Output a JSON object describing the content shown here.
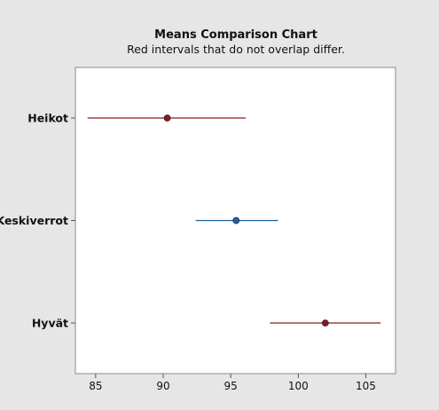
{
  "chart_data": {
    "type": "interval",
    "title": "Means Comparison Chart",
    "subtitle": "Red intervals that do not overlap differ.",
    "xlabel": "",
    "ylabel": "",
    "xlim": [
      83.5,
      107.2
    ],
    "xticks": [
      85,
      90,
      95,
      100,
      105
    ],
    "categories": [
      "Heikot",
      "Keskiverrot",
      "Hyvät"
    ],
    "series": [
      {
        "mean": 90.3,
        "lower": 84.4,
        "upper": 96.1,
        "color": "#8b1a1a"
      },
      {
        "mean": 95.4,
        "lower": 92.4,
        "upper": 98.5,
        "color": "#1f5fa6"
      },
      {
        "mean": 102.0,
        "lower": 97.9,
        "upper": 106.1,
        "color": "#8b1a1a"
      }
    ],
    "grid": false,
    "legend": "none"
  }
}
